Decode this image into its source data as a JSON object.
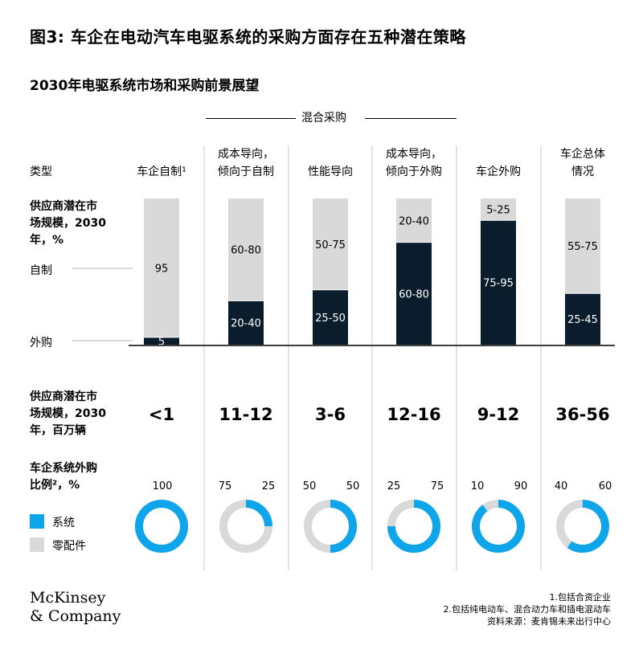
{
  "title": "图3: 车企在电动汽车电驱系统的采购方面存在五种潜在策略",
  "subtitle": "2030年电驱系统市场和采购前景展望",
  "hybrid_label": "混合采购",
  "row_labels": {
    "type": "类型",
    "market_pct": [
      "供应商潜在市",
      "场规模，2030",
      "年，%"
    ],
    "market_units": [
      "供应商潜在市",
      "场规模，2030",
      "年，百万辆"
    ],
    "oem_share": [
      "车企系统外购",
      "比例²，%"
    ]
  },
  "side_labels": {
    "in_house": "自制",
    "outsourced": "外购"
  },
  "columns": [
    {
      "head": [
        "车企自制¹"
      ],
      "market_units": "<1",
      "oem_split": [
        "100",
        ""
      ]
    },
    {
      "head": [
        "成本导向，",
        "倾向于自制"
      ],
      "market_units": "11-12",
      "oem_split": [
        "75",
        "25"
      ]
    },
    {
      "head": [
        "性能导向"
      ],
      "market_units": "3-6",
      "oem_split": [
        "50",
        "50"
      ]
    },
    {
      "head": [
        "成本导向，",
        "倾向于外购"
      ],
      "market_units": "12-16",
      "oem_split": [
        "25",
        "75"
      ]
    },
    {
      "head": [
        "车企外购"
      ],
      "market_units": "9-12",
      "oem_split": [
        "10",
        "90"
      ]
    },
    {
      "head": [
        "车企总体",
        "情况"
      ],
      "market_units": "36-56",
      "oem_split": [
        "40",
        "60"
      ]
    }
  ],
  "legend": {
    "system": "系统",
    "parts": "零配件"
  },
  "logo": [
    "McKinsey",
    "& Company"
  ],
  "notes": [
    "1.包括合资企业",
    "2.包括纯电动车、混合动力车和插电混动车",
    "资料来源：麦肯锡未来出行中心"
  ],
  "colors": {
    "dark": "#0b1d2c",
    "light": "#d9d9d9",
    "blue": "#0ea5ea",
    "line": "#000000"
  },
  "chart_data": [
    {
      "type": "bar",
      "stacked": true,
      "categories": [
        "车企自制¹",
        "成本导向，倾向于自制",
        "性能导向",
        "成本导向，倾向于外购",
        "车企外购",
        "车企总体情况"
      ],
      "series": [
        {
          "name": "外购",
          "values": [
            5,
            30,
            37.5,
            70,
            85,
            35
          ],
          "labels": [
            "5",
            "20-40",
            "25-50",
            "60-80",
            "75-95",
            "25-45"
          ],
          "color": "#0b1d2c"
        },
        {
          "name": "自制",
          "values": [
            95,
            70,
            62.5,
            30,
            15,
            65
          ],
          "labels": [
            "95",
            "60-80",
            "50-75",
            "20-40",
            "5-25",
            "55-75"
          ],
          "color": "#d9d9d9"
        }
      ],
      "ylim": [
        0,
        100
      ]
    },
    {
      "type": "pie",
      "donut": true,
      "categories": [
        "车企自制¹",
        "成本导向，倾向于自制",
        "性能导向",
        "成本导向，倾向于外购",
        "车企外购",
        "车企总体情况"
      ],
      "series": [
        {
          "name": "系统",
          "values": [
            100,
            25,
            50,
            75,
            90,
            60
          ],
          "color": "#0ea5ea"
        },
        {
          "name": "零配件",
          "values": [
            0,
            75,
            50,
            25,
            10,
            40
          ],
          "color": "#d9d9d9"
        }
      ]
    }
  ]
}
